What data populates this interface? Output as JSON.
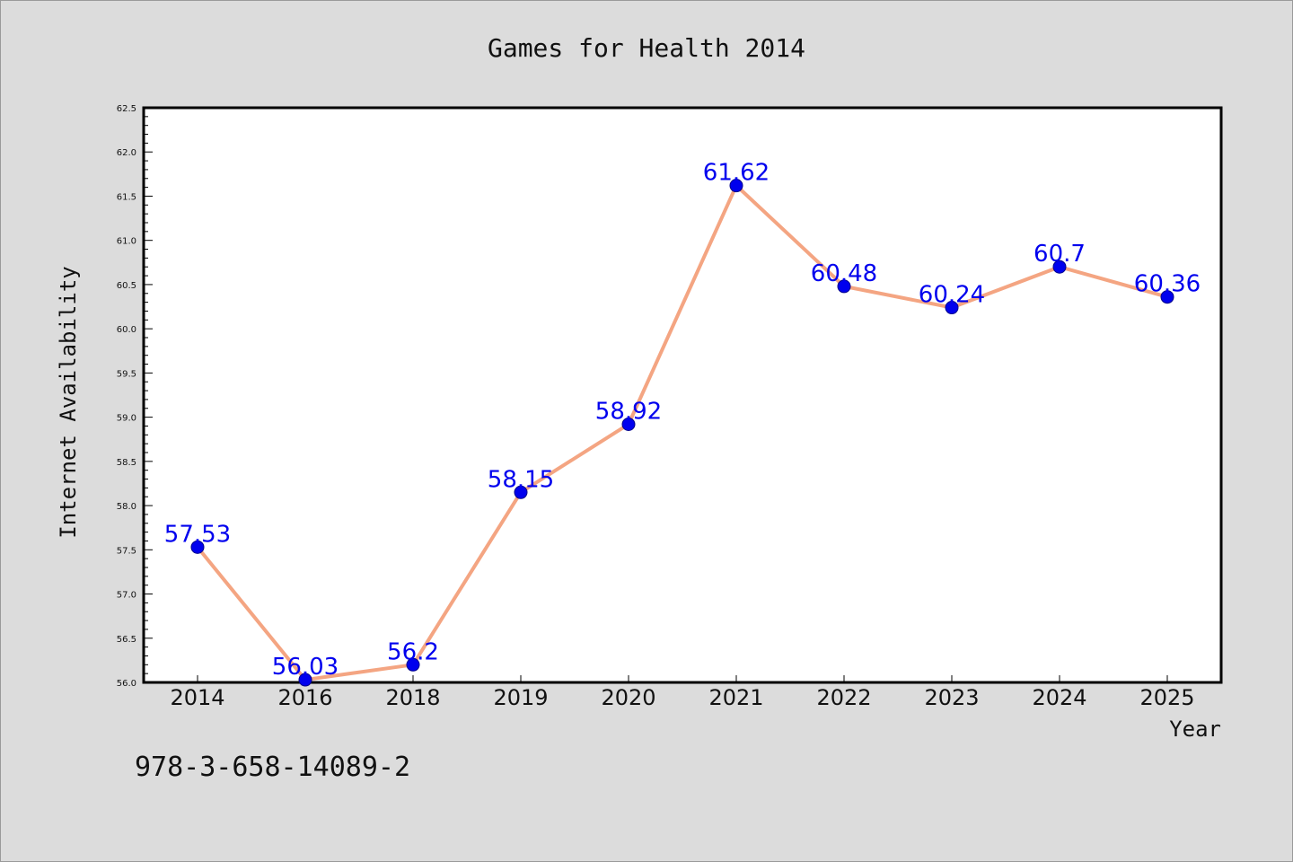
{
  "chart_data": {
    "type": "line",
    "title": "Games for Health 2014",
    "xlabel": "Year",
    "ylabel": "Internet Availability",
    "categories": [
      "2014",
      "2016",
      "2018",
      "2019",
      "2020",
      "2021",
      "2022",
      "2023",
      "2024",
      "2025"
    ],
    "series": [
      {
        "values": [
          57.53,
          56.03,
          56.2,
          58.15,
          58.92,
          61.62,
          60.48,
          60.24,
          60.7,
          60.36
        ],
        "labels": [
          "57.53",
          "56.03",
          "56.2",
          "58.15",
          "58.92",
          "61.62",
          "60.48",
          "60.24",
          "60.7",
          "60.36"
        ],
        "line_color": "#f4a582",
        "marker_color": "#0000ee",
        "label_color": "#0000ee"
      }
    ],
    "ylim": [
      56.0,
      62.5
    ],
    "yticks": [
      "56.0",
      "56.5",
      "57.0",
      "57.5",
      "58.0",
      "58.5",
      "59.0",
      "59.5",
      "60.0",
      "60.5",
      "61.0",
      "61.5",
      "62.0",
      "62.5"
    ],
    "grid": false,
    "legend": "none"
  },
  "footnote": "978-3-658-14089-2"
}
